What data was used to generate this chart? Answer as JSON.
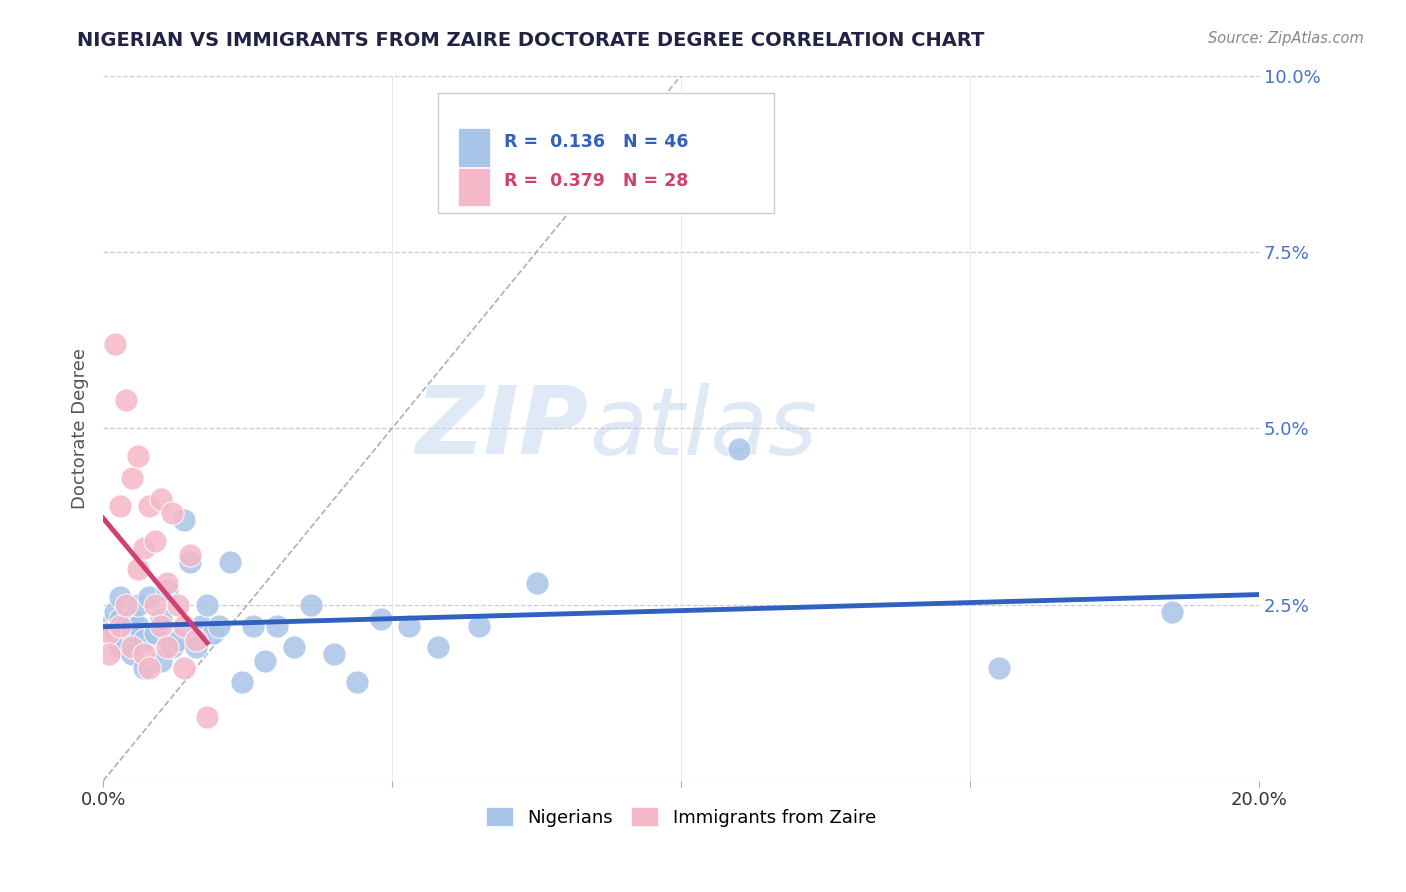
{
  "title": "NIGERIAN VS IMMIGRANTS FROM ZAIRE DOCTORATE DEGREE CORRELATION CHART",
  "source": "Source: ZipAtlas.com",
  "ylabel": "Doctorate Degree",
  "xlim": [
    0.0,
    0.2
  ],
  "ylim": [
    0.0,
    0.1
  ],
  "background_color": "#ffffff",
  "grid_color": "#cccccc",
  "watermark_zip": "ZIP",
  "watermark_atlas": "atlas",
  "r_nigerian": 0.136,
  "n_nigerian": 46,
  "r_zaire": 0.379,
  "n_zaire": 28,
  "nigerian_color": "#a8c4e8",
  "zaire_color": "#f5b8c8",
  "nigerian_line_color": "#3060c0",
  "zaire_line_color": "#d04070",
  "tick_color": "#4472c4",
  "nigerian_x": [
    0.001,
    0.002,
    0.002,
    0.003,
    0.003,
    0.003,
    0.004,
    0.004,
    0.005,
    0.005,
    0.005,
    0.006,
    0.006,
    0.007,
    0.007,
    0.008,
    0.009,
    0.01,
    0.01,
    0.011,
    0.012,
    0.013,
    0.014,
    0.015,
    0.016,
    0.017,
    0.018,
    0.019,
    0.02,
    0.022,
    0.024,
    0.026,
    0.028,
    0.03,
    0.033,
    0.036,
    0.04,
    0.044,
    0.048,
    0.053,
    0.058,
    0.065,
    0.075,
    0.11,
    0.155,
    0.185
  ],
  "nigerian_y": [
    0.022,
    0.024,
    0.021,
    0.023,
    0.019,
    0.026,
    0.02,
    0.022,
    0.021,
    0.023,
    0.018,
    0.022,
    0.025,
    0.02,
    0.016,
    0.026,
    0.021,
    0.023,
    0.017,
    0.027,
    0.019,
    0.02,
    0.037,
    0.031,
    0.019,
    0.022,
    0.025,
    0.021,
    0.022,
    0.031,
    0.014,
    0.022,
    0.017,
    0.022,
    0.019,
    0.025,
    0.018,
    0.014,
    0.023,
    0.022,
    0.019,
    0.022,
    0.028,
    0.047,
    0.016,
    0.024
  ],
  "zaire_x": [
    0.001,
    0.001,
    0.002,
    0.003,
    0.003,
    0.004,
    0.004,
    0.005,
    0.005,
    0.006,
    0.006,
    0.007,
    0.007,
    0.008,
    0.008,
    0.009,
    0.009,
    0.01,
    0.01,
    0.011,
    0.011,
    0.012,
    0.013,
    0.014,
    0.014,
    0.015,
    0.016,
    0.018
  ],
  "zaire_y": [
    0.021,
    0.018,
    0.062,
    0.022,
    0.039,
    0.025,
    0.054,
    0.043,
    0.019,
    0.046,
    0.03,
    0.018,
    0.033,
    0.039,
    0.016,
    0.034,
    0.025,
    0.04,
    0.022,
    0.028,
    0.019,
    0.038,
    0.025,
    0.022,
    0.016,
    0.032,
    0.02,
    0.009
  ]
}
